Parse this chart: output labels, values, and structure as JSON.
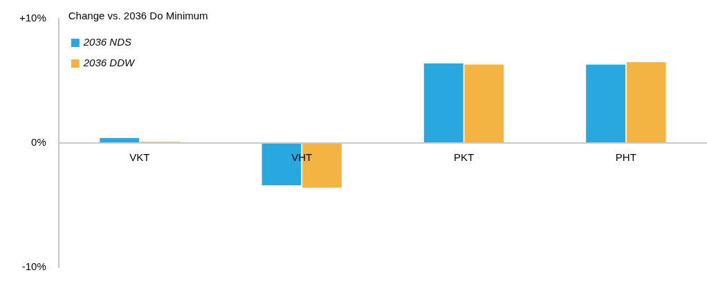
{
  "chart_data": {
    "type": "bar",
    "ylabel": "Change vs. 2036 Do Minimum",
    "categories": [
      "VKT",
      "VHT",
      "PKT",
      "PHT"
    ],
    "series": [
      {
        "name": "2036 NDS",
        "color": "#29a8e0",
        "values": [
          0.4,
          -3.4,
          6.4,
          6.3
        ]
      },
      {
        "name": "2036 DDW",
        "color": "#f4b443",
        "values": [
          0.1,
          -3.6,
          6.3,
          6.5
        ]
      }
    ],
    "ylim": [
      -10,
      10
    ],
    "yticks": [
      {
        "value": -10,
        "label": "-10%"
      },
      {
        "value": 0,
        "label": "0%"
      },
      {
        "value": 10,
        "label": "+10%"
      }
    ],
    "grid": false,
    "legend": "top left"
  }
}
